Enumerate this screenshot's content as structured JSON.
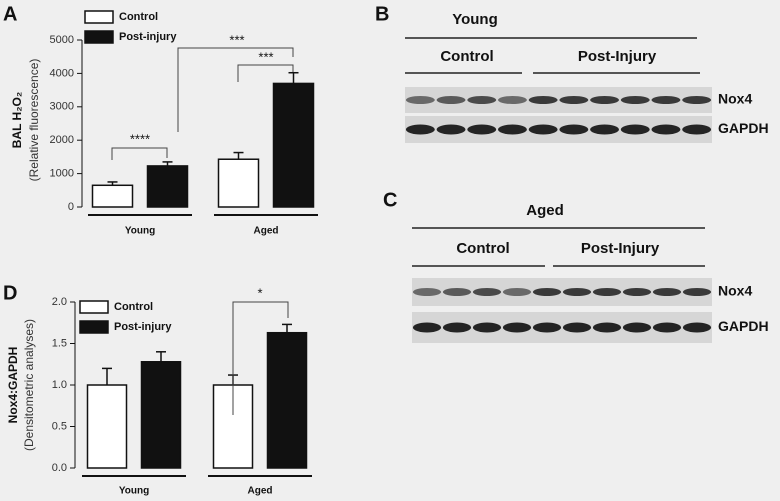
{
  "chart_data": [
    {
      "type": "bar",
      "panel": "A",
      "ylabel": "BAL H₂O₂",
      "ylabel_sub": "(Relative fluorescence)",
      "categories": [
        "Young",
        "Aged"
      ],
      "series": [
        {
          "name": "Control",
          "color": "#ffffff",
          "values": [
            650,
            1430
          ],
          "errors": [
            100,
            200
          ]
        },
        {
          "name": "Post-injury",
          "color": "#111111",
          "values": [
            1230,
            3700
          ],
          "errors": [
            120,
            320
          ]
        }
      ],
      "ylim": [
        0,
        5000
      ],
      "yticks": [
        0,
        1000,
        2000,
        3000,
        4000,
        5000
      ],
      "annotations": [
        "****",
        "***",
        "***"
      ]
    },
    {
      "type": "bar",
      "panel": "D",
      "ylabel": "Nox4:GAPDH",
      "ylabel_sub": "(Densitometric analyses)",
      "categories": [
        "Young",
        "Aged"
      ],
      "series": [
        {
          "name": "Control",
          "color": "#ffffff",
          "values": [
            1.0,
            1.0
          ],
          "errors": [
            0.2,
            0.12
          ]
        },
        {
          "name": "Post-injury",
          "color": "#111111",
          "values": [
            1.28,
            1.63
          ],
          "errors": [
            0.12,
            0.1
          ]
        }
      ],
      "ylim": [
        0,
        2
      ],
      "yticks": [
        {
          "value": 0,
          "label": "0.0"
        },
        0.5,
        {
          "value": 1,
          "label": "1.0"
        },
        1.5,
        {
          "value": 2,
          "label": "2.0"
        }
      ],
      "annotations": [
        "*"
      ]
    }
  ],
  "blots": [
    {
      "panel": "B",
      "title": "Young",
      "groups": [
        "Control",
        "Post-Injury"
      ],
      "bands": [
        "Nox4",
        "GAPDH"
      ]
    },
    {
      "panel": "C",
      "title": "Aged",
      "groups": [
        "Control",
        "Post-Injury"
      ],
      "bands": [
        "Nox4",
        "GAPDH"
      ]
    }
  ]
}
